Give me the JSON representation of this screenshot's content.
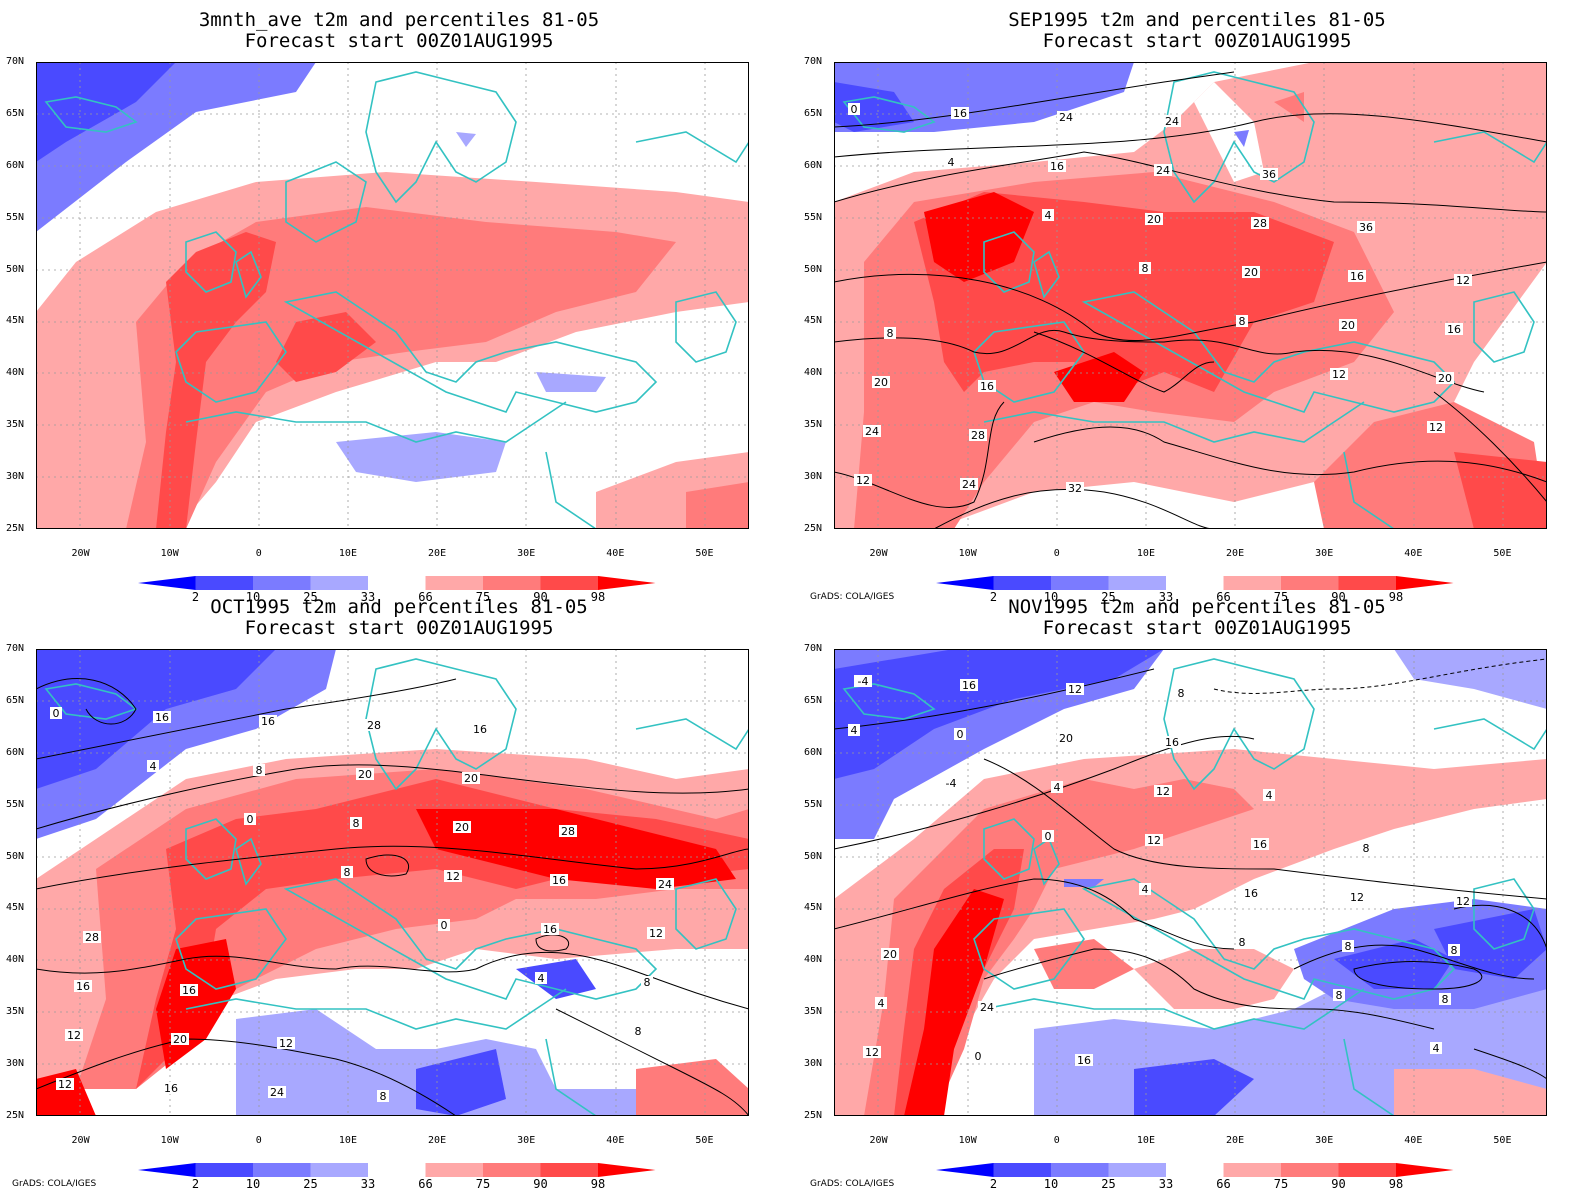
{
  "panels": [
    {
      "id": "p1",
      "title_line1": "3mnth_ave t2m and percentiles 81-05",
      "title_line2": "Forecast start 00Z01AUG1995",
      "credit": "",
      "contour_labels": []
    },
    {
      "id": "p2",
      "title_line1": "SEP1995 t2m and percentiles 81-05",
      "title_line2": "Forecast start 00Z01AUG1995",
      "credit": "GrADS: COLA/IGES",
      "contour_labels": [
        "0",
        "4",
        "4",
        "8",
        "8",
        "12",
        "12",
        "12",
        "16",
        "16",
        "20",
        "20",
        "20",
        "20",
        "24",
        "24",
        "24",
        "24",
        "28",
        "16",
        "16",
        "20",
        "28",
        "32",
        "24",
        "36",
        "36",
        "12",
        "8",
        "16"
      ]
    },
    {
      "id": "p3",
      "title_line1": "OCT1995 t2m and percentiles 81-05",
      "title_line2": "Forecast start 00Z01AUG1995",
      "credit": "GrADS: COLA/IGES",
      "contour_labels": [
        "0",
        "4",
        "0",
        "8",
        "0",
        "4",
        "8",
        "12",
        "16",
        "8",
        "8",
        "12",
        "16",
        "8",
        "12",
        "16",
        "16",
        "20",
        "20",
        "16",
        "12",
        "16",
        "20",
        "24",
        "28",
        "20",
        "28",
        "24",
        "28",
        "16",
        "12",
        "8",
        "16"
      ]
    },
    {
      "id": "p4",
      "title_line1": "NOV1995 t2m and percentiles 81-05",
      "title_line2": "Forecast start 00Z01AUG1995",
      "credit": "GrADS: COLA/IGES",
      "contour_labels": [
        "4",
        "-4",
        "0",
        "4",
        "8",
        "8",
        "4",
        "-4",
        "0",
        "4",
        "12",
        "16",
        "8",
        "8",
        "12",
        "16",
        "20",
        "12",
        "16",
        "12",
        "8",
        "4",
        "0",
        "12",
        "16",
        "4",
        "8",
        "12",
        "20",
        "24",
        "16",
        "8"
      ]
    }
  ],
  "map": {
    "lat_labels": [
      "70N",
      "65N",
      "60N",
      "55N",
      "50N",
      "45N",
      "40N",
      "35N",
      "30N",
      "25N"
    ],
    "lon_labels": [
      "20W",
      "10W",
      "0",
      "10E",
      "20E",
      "30E",
      "40E",
      "50E"
    ],
    "lat_range": [
      25,
      70
    ],
    "lon_range": [
      -25,
      55
    ]
  },
  "colorbar": {
    "labels": [
      "2",
      "10",
      "25",
      "33",
      "66",
      "75",
      "90",
      "98"
    ],
    "colors": [
      "#0000ff",
      "#4a4aff",
      "#7b7bff",
      "#a8a8ff",
      "#ffffff",
      "#ffa8a8",
      "#ff7b7b",
      "#ff4a4a",
      "#ff0000"
    ]
  },
  "colors": {
    "coast": "#33c2c2",
    "contour": "#000000",
    "grid": "#9a9a9a"
  }
}
